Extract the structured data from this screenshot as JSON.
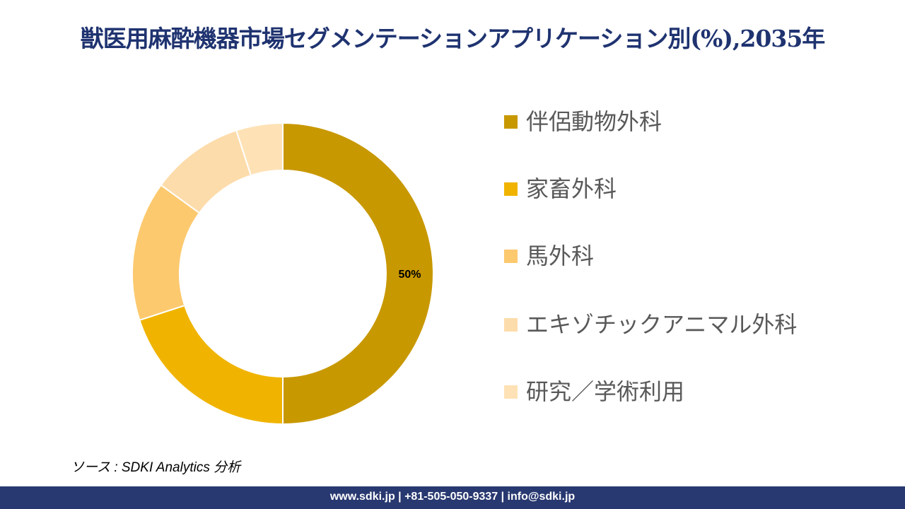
{
  "title": "獣医用麻酔機器市場セグメンテーションアプリケーション別(%),2035年",
  "chart_data": {
    "type": "pie",
    "variant": "donut",
    "title": "獣医用麻酔機器市場セグメンテーションアプリケーション別(%),2035年",
    "categories": [
      "伴侶動物外科",
      "家畜外科",
      "馬外科",
      "エキゾチックアニマル外科",
      "研究／学術利用"
    ],
    "values": [
      50,
      20,
      15,
      10,
      5
    ],
    "colors": [
      "#c89800",
      "#f0b400",
      "#fcc96e",
      "#fddcab",
      "#fee2b6"
    ],
    "data_labels": [
      "50%"
    ],
    "legend_position": "right"
  },
  "source": "ソース : SDKI Analytics 分析",
  "footer": "www.sdki.jp | +81-505-050-9337 | info@sdki.jp"
}
